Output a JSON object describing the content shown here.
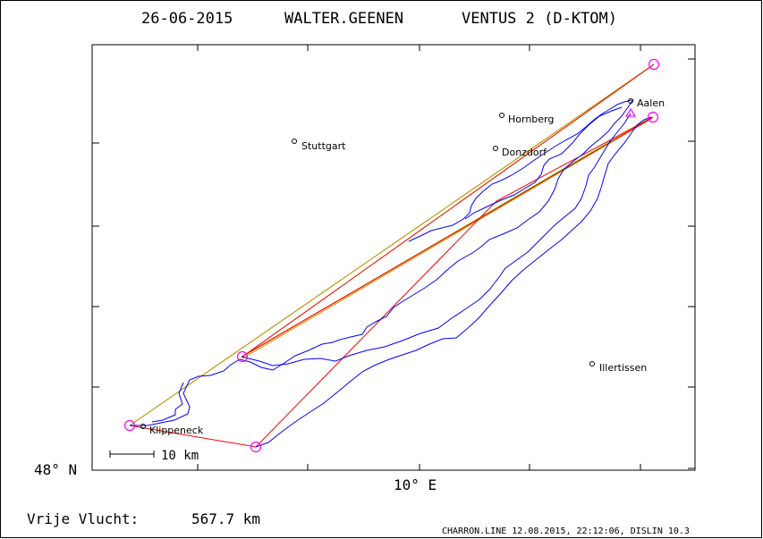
{
  "header": {
    "date": "26-06-2015",
    "pilot": "WALTER.GEENEN",
    "glider": "VENTUS 2 (D-KTOM)"
  },
  "axes": {
    "lat_label": "48° N",
    "lon_label": "10° E"
  },
  "scale_bar": {
    "label": "10 km"
  },
  "places": [
    {
      "name": "Aalen"
    },
    {
      "name": "Hornberg"
    },
    {
      "name": "Stuttgart"
    },
    {
      "name": "Donzdorf"
    },
    {
      "name": "Illertissen"
    },
    {
      "name": "Klippeneck"
    }
  ],
  "distance": {
    "label": "Vrije Vlucht:",
    "value": "567.7 km"
  },
  "footer": {
    "credit": "CHARRON.LINE 12.08.2015, 22:12:06, DISLIN 10.3"
  },
  "colors": {
    "track": "#0000ff",
    "route_red": "#ff0000",
    "route_green": "#66ff33",
    "route_orange": "#cc8800",
    "turnpoint": "#ff00ff",
    "frame": "#000000"
  }
}
